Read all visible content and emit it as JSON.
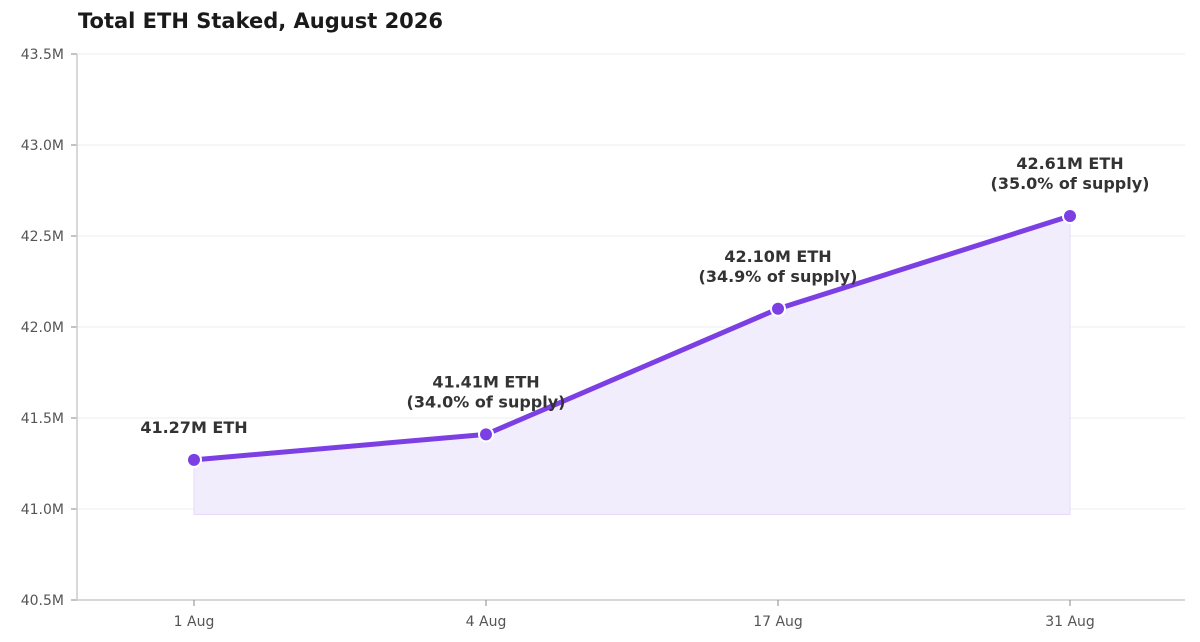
{
  "chart_data": {
    "type": "area",
    "title": "Total ETH Staked, August 2026",
    "xlabel": "",
    "ylabel": "",
    "categories": [
      "1 Aug",
      "4 Aug",
      "17 Aug",
      "31 Aug"
    ],
    "series": [
      {
        "values": [
          41.27,
          41.41,
          42.1,
          42.61
        ]
      }
    ],
    "y_unit": "M ETH",
    "ylim": [
      40.5,
      43.5
    ],
    "yticks": [
      40.5,
      41.0,
      41.5,
      42.0,
      42.5,
      43.0,
      43.5
    ],
    "ytick_labels": [
      "40.5M",
      "41.0M",
      "41.5M",
      "42.0M",
      "42.5M",
      "43.0M",
      "43.5M"
    ],
    "annotations": [
      {
        "line1": "41.27M ETH",
        "line2": ""
      },
      {
        "line1": "41.41M ETH",
        "line2": "(34.0% of supply)"
      },
      {
        "line1": "42.10M ETH",
        "line2": "(34.9% of supply)"
      },
      {
        "line1": "42.61M ETH",
        "line2": "(35.0% of supply)"
      }
    ],
    "grid": true,
    "colors": {
      "line": "#7b3fe4",
      "fill": "#f2edfc",
      "grid": "#ececec",
      "axis": "#cccccc"
    }
  }
}
